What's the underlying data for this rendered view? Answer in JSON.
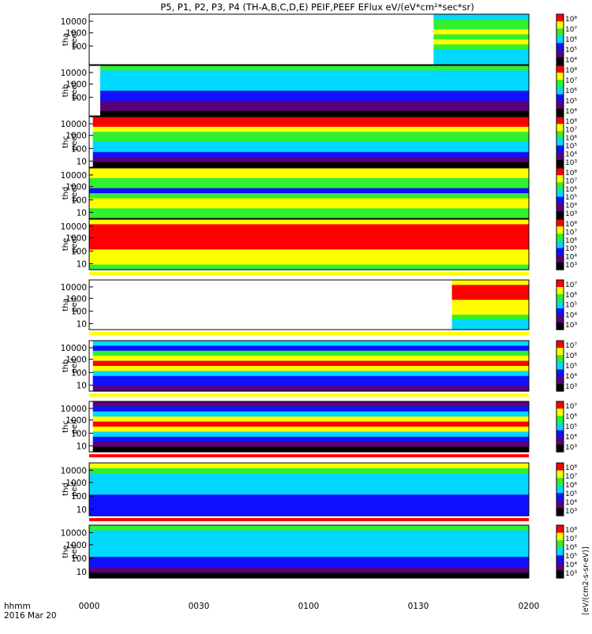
{
  "title": "P5, P1, P2, P3, P4 (TH-A,B,C,D,E) PEIF,PEEF EFlux eV/(eV*cm²*sec*sr)",
  "time_axis": {
    "ticks": [
      "0000",
      "0030",
      "0100",
      "0130",
      "0200"
    ],
    "label_line1": "hhmm",
    "label_line2": "2016 Mar 20"
  },
  "colorbar_unit_label": "[eV/(cm2-s-sr-eV)]",
  "colors": {
    "black": "#000000",
    "purple": "#5a0078",
    "blue": "#1010ff",
    "cyan": "#00d8ff",
    "green": "#30f030",
    "yellow": "#ffff00",
    "red": "#ff0000"
  },
  "chart_data": [
    {
      "type": "heatmap",
      "ylabel_line1": "tha",
      "ylabel_line2": "peef",
      "x_range": [
        "0000",
        "0200"
      ],
      "y_ticks": [
        "10000",
        "1000",
        "100"
      ],
      "y_scale": "log",
      "start": "0134",
      "colorbar_ticks": [
        "10⁸",
        "10⁷",
        "10⁶",
        "10⁵",
        "10⁴"
      ],
      "color_levels": [
        3,
        4,
        4,
        5,
        4,
        5,
        4,
        3,
        3,
        3
      ],
      "band_below": null
    },
    {
      "type": "heatmap",
      "ylabel_line1": "thb",
      "ylabel_line2": "peef",
      "x_range": [
        "0000",
        "0200"
      ],
      "y_ticks": [
        "10000",
        "1000",
        "100"
      ],
      "y_scale": "log",
      "start": "0003",
      "colorbar_ticks": [
        "10⁸",
        "10⁷",
        "10⁶",
        "10⁵",
        "10⁴"
      ],
      "color_levels": [
        4,
        3,
        3,
        3,
        3,
        2,
        2,
        1,
        1,
        0
      ],
      "band_below": null
    },
    {
      "type": "heatmap",
      "ylabel_line1": "thc",
      "ylabel_line2": "peef",
      "x_range": [
        "0000",
        "0200"
      ],
      "y_ticks": [
        "10000",
        "1000",
        "100",
        "10"
      ],
      "y_scale": "log",
      "start": "0001",
      "colorbar_ticks": [
        "10⁸",
        "10⁷",
        "10⁶",
        "10⁵",
        "10⁴",
        "10³"
      ],
      "color_levels": [
        6,
        6,
        5,
        4,
        4,
        3,
        3,
        2,
        1,
        0
      ],
      "band_below": null
    },
    {
      "type": "heatmap",
      "ylabel_line1": "thd",
      "ylabel_line2": "peef",
      "x_range": [
        "0000",
        "0200"
      ],
      "y_ticks": [
        "10000",
        "1000",
        "100",
        "10"
      ],
      "y_scale": "log",
      "start": "0000",
      "colorbar_ticks": [
        "10⁸",
        "10⁷",
        "10⁶",
        "10⁵",
        "10⁴",
        "10³"
      ],
      "color_levels": [
        5,
        5,
        4,
        4,
        2,
        4,
        5,
        5,
        4,
        4
      ],
      "band_below": null
    },
    {
      "type": "heatmap",
      "ylabel_line1": "the",
      "ylabel_line2": "peef",
      "x_range": [
        "0000",
        "0200"
      ],
      "y_ticks": [
        "10000",
        "1000",
        "100",
        "10"
      ],
      "y_scale": "log",
      "start": "0000",
      "colorbar_ticks": [
        "10⁸",
        "10⁷",
        "10⁶",
        "10⁵",
        "10⁴",
        "10³"
      ],
      "color_levels": [
        5,
        6,
        6,
        6,
        6,
        6,
        5,
        5,
        5,
        4
      ],
      "band_below": "yellow"
    },
    {
      "type": "heatmap",
      "ylabel_line1": "tha",
      "ylabel_line2": "peif",
      "x_range": [
        "0000",
        "0200"
      ],
      "y_ticks": [
        "10000",
        "1000",
        "100",
        "10"
      ],
      "y_scale": "log",
      "start": "0139",
      "colorbar_ticks": [
        "10⁷",
        "10⁶",
        "10⁵",
        "10⁴",
        "10³"
      ],
      "color_levels": [
        5,
        6,
        6,
        6,
        5,
        5,
        5,
        4,
        3,
        3
      ],
      "band_below": "yellow"
    },
    {
      "type": "heatmap",
      "ylabel_line1": "thb",
      "ylabel_line2": "peif",
      "x_range": [
        "0000",
        "0200"
      ],
      "y_ticks": [
        "10000",
        "1000",
        "100",
        "10"
      ],
      "y_scale": "log",
      "start": "0001",
      "colorbar_ticks": [
        "10⁷",
        "10⁶",
        "10⁵",
        "10⁴",
        "10³"
      ],
      "color_levels": [
        3,
        2,
        4,
        5,
        6,
        5,
        3,
        2,
        2,
        1
      ],
      "band_below": "yellow"
    },
    {
      "type": "heatmap",
      "ylabel_line1": "thc",
      "ylabel_line2": "peif",
      "x_range": [
        "0000",
        "0200"
      ],
      "y_ticks": [
        "10000",
        "1000",
        "100",
        "10"
      ],
      "y_scale": "log",
      "start": "0001",
      "colorbar_ticks": [
        "10⁷",
        "10⁶",
        "10⁵",
        "10⁴",
        "10³"
      ],
      "color_levels": [
        1,
        2,
        3,
        5,
        6,
        5,
        3,
        2,
        1,
        0
      ],
      "band_below": "red"
    },
    {
      "type": "heatmap",
      "ylabel_line1": "thd",
      "ylabel_line2": "peif",
      "x_range": [
        "0000",
        "0200"
      ],
      "y_ticks": [
        "10000",
        "1000",
        "100",
        "10"
      ],
      "y_scale": "log",
      "start": "0000",
      "colorbar_ticks": [
        "10⁸",
        "10⁷",
        "10⁶",
        "10⁵",
        "10⁴",
        "10³"
      ],
      "color_levels": [
        5,
        4,
        3,
        3,
        3,
        3,
        2,
        2,
        2,
        2
      ],
      "band_below": "red"
    },
    {
      "type": "heatmap",
      "ylabel_line1": "the",
      "ylabel_line2": "peif",
      "x_range": [
        "0000",
        "0200"
      ],
      "y_ticks": [
        "10000",
        "1000",
        "100",
        "10"
      ],
      "y_scale": "log",
      "start": "0000",
      "colorbar_ticks": [
        "10⁸",
        "10⁷",
        "10⁶",
        "10⁵",
        "10⁴",
        "10³"
      ],
      "color_levels": [
        4,
        3,
        3,
        3,
        3,
        3,
        2,
        2,
        1,
        0
      ],
      "band_below": null
    }
  ]
}
